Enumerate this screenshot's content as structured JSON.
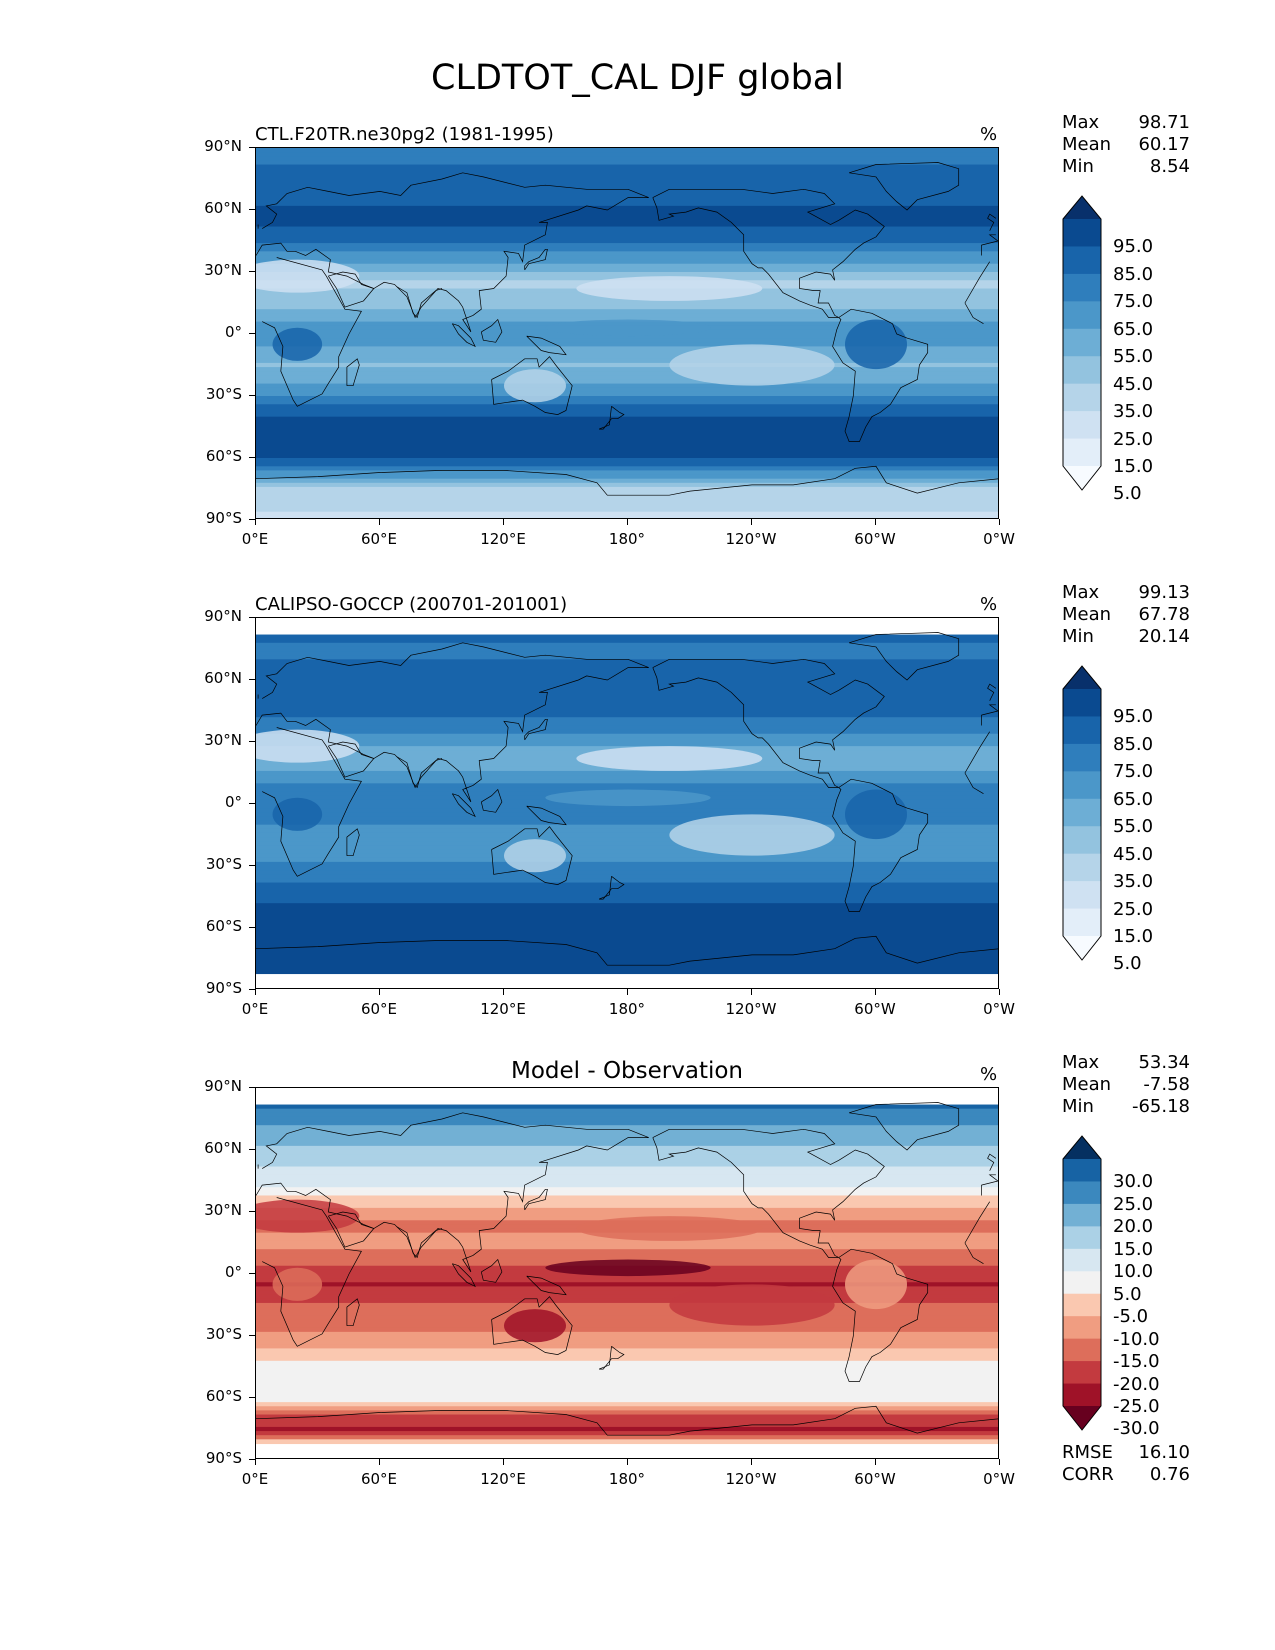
{
  "figure": {
    "title": "CLDTOT_CAL DJF global"
  },
  "colors": {
    "blues": [
      "#f7fbff",
      "#e3eef9",
      "#cfe1f2",
      "#b5d4e9",
      "#93c3df",
      "#6daed5",
      "#4b97c9",
      "#2f7ebc",
      "#1864aa",
      "#0a4a90",
      "#08306b"
    ],
    "diff": [
      "#67001f",
      "#9f1228",
      "#c33a3f",
      "#dd6e5b",
      "#f09d81",
      "#fac8b0",
      "#f2f2f2",
      "#d7e7f1",
      "#abd1e6",
      "#72b0d4",
      "#3b88be",
      "#1763a4",
      "#053061"
    ],
    "coast": "#000000"
  },
  "chart_data": [
    {
      "type": "heatmap",
      "name": "model",
      "title": "CTL.F20TR.ne30pg2 (1981-1995)",
      "units": "%",
      "xlabel": "",
      "ylabel": "",
      "xlim": [
        0,
        360
      ],
      "ylim": [
        -90,
        90
      ],
      "x_tick_labels": [
        "0°E",
        "60°E",
        "120°E",
        "180°",
        "120°W",
        "60°W",
        "0°W"
      ],
      "y_tick_labels": [
        "90°N",
        "60°N",
        "30°N",
        "0°",
        "30°S",
        "60°S",
        "90°S"
      ],
      "stats": [
        {
          "label": "Max",
          "value": "98.71"
        },
        {
          "label": "Mean",
          "value": "60.17"
        },
        {
          "label": "Min",
          "value": "8.54"
        }
      ],
      "colorbar": {
        "levels": [
          "95.0",
          "85.0",
          "75.0",
          "65.0",
          "55.0",
          "45.0",
          "35.0",
          "25.0",
          "15.0",
          "5.0"
        ],
        "range": [
          0,
          100
        ],
        "extend": "both",
        "palette": "blues"
      },
      "lat_band": [
        -90,
        90
      ],
      "zonal_profile": {
        "lat": [
          -90,
          -75,
          -65,
          -55,
          -45,
          -35,
          -25,
          -15,
          -5,
          5,
          15,
          25,
          35,
          45,
          55,
          65,
          75,
          90
        ],
        "value": [
          25,
          35,
          70,
          90,
          90,
          75,
          55,
          45,
          55,
          55,
          40,
          35,
          55,
          75,
          85,
          80,
          75,
          70
        ]
      }
    },
    {
      "type": "heatmap",
      "name": "observation",
      "title": "CALIPSO-GOCCP (200701-201001)",
      "units": "%",
      "xlabel": "",
      "ylabel": "",
      "xlim": [
        0,
        360
      ],
      "ylim": [
        -90,
        90
      ],
      "x_tick_labels": [
        "0°E",
        "60°E",
        "120°E",
        "180°",
        "120°W",
        "60°W",
        "0°W"
      ],
      "y_tick_labels": [
        "90°N",
        "60°N",
        "30°N",
        "0°",
        "30°S",
        "60°S",
        "90°S"
      ],
      "stats": [
        {
          "label": "Max",
          "value": "99.13"
        },
        {
          "label": "Mean",
          "value": "67.78"
        },
        {
          "label": "Min",
          "value": "20.14"
        }
      ],
      "colorbar": {
        "levels": [
          "95.0",
          "85.0",
          "75.0",
          "65.0",
          "55.0",
          "45.0",
          "35.0",
          "25.0",
          "15.0",
          "5.0"
        ],
        "range": [
          0,
          100
        ],
        "extend": "both",
        "palette": "blues"
      },
      "lat_band": [
        -82,
        82
      ],
      "zonal_profile": {
        "lat": [
          -82,
          -75,
          -65,
          -55,
          -45,
          -35,
          -25,
          -15,
          -5,
          5,
          15,
          25,
          35,
          45,
          55,
          65,
          75,
          82
        ],
        "value": [
          90,
          90,
          88,
          85,
          80,
          70,
          60,
          55,
          70,
          70,
          55,
          50,
          65,
          75,
          80,
          75,
          70,
          75
        ]
      }
    },
    {
      "type": "heatmap",
      "name": "difference",
      "title": "Model - Observation",
      "units": "%",
      "xlabel": "",
      "ylabel": "",
      "xlim": [
        0,
        360
      ],
      "ylim": [
        -90,
        90
      ],
      "x_tick_labels": [
        "0°E",
        "60°E",
        "120°E",
        "180°",
        "120°W",
        "60°W",
        "0°W"
      ],
      "y_tick_labels": [
        "90°N",
        "60°N",
        "30°N",
        "0°",
        "30°S",
        "60°S",
        "90°S"
      ],
      "stats": [
        {
          "label": "Max",
          "value": "53.34"
        },
        {
          "label": "Mean",
          "value": "-7.58"
        },
        {
          "label": "Min",
          "value": "-65.18"
        }
      ],
      "colorbar": {
        "levels": [
          "30.0",
          "25.0",
          "20.0",
          "15.0",
          "10.0",
          "5.0",
          "-5.0",
          "-10.0",
          "-15.0",
          "-20.0",
          "-25.0",
          "-30.0"
        ],
        "range": [
          -35,
          35
        ],
        "extend": "both",
        "palette": "diff"
      },
      "metrics": [
        {
          "label": "RMSE",
          "value": "16.10"
        },
        {
          "label": "CORR",
          "value": "0.76"
        }
      ],
      "lat_band": [
        -82,
        82
      ],
      "zonal_profile": {
        "lat": [
          -82,
          -75,
          -68,
          -62,
          -55,
          -45,
          -35,
          -25,
          -15,
          -5,
          5,
          15,
          25,
          35,
          45,
          55,
          65,
          75,
          82
        ],
        "value": [
          -5,
          -25,
          -20,
          0,
          0,
          0,
          -10,
          -15,
          -18,
          -25,
          -18,
          -12,
          -15,
          -5,
          5,
          10,
          15,
          20,
          25
        ]
      }
    }
  ]
}
